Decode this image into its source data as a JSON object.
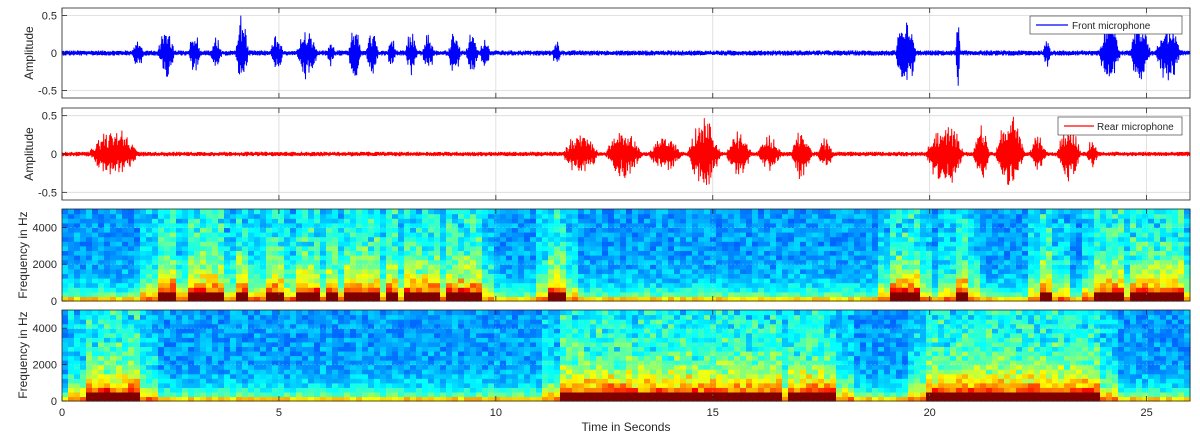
{
  "xlabel": "Time in Seconds",
  "x_ticks": [
    0,
    5,
    10,
    15,
    20,
    25
  ],
  "colors": {
    "front": "#0000ff",
    "rear": "#ff0000",
    "grid": "#d9d9d9"
  },
  "chart_data": [
    {
      "type": "line",
      "ylabel": "Amplitude",
      "xlim": [
        0,
        26
      ],
      "ylim": [
        -0.6,
        0.6
      ],
      "y_ticks": [
        -0.5,
        0,
        0.5
      ],
      "grid": true,
      "legend_position": "top-right",
      "series": [
        {
          "name": "Front microphone",
          "color": "#0000ff",
          "noise": 0.035,
          "bursts": [
            [
              1.6,
              1.9,
              0.22
            ],
            [
              2.2,
              2.6,
              0.4
            ],
            [
              2.9,
              3.2,
              0.34
            ],
            [
              3.4,
              3.7,
              0.25
            ],
            [
              4.0,
              4.3,
              0.55
            ],
            [
              4.8,
              5.1,
              0.3
            ],
            [
              5.4,
              5.9,
              0.44
            ],
            [
              6.1,
              6.3,
              0.22
            ],
            [
              6.6,
              6.9,
              0.48
            ],
            [
              7.0,
              7.3,
              0.38
            ],
            [
              7.5,
              7.7,
              0.25
            ],
            [
              7.9,
              8.2,
              0.35
            ],
            [
              8.3,
              8.6,
              0.3
            ],
            [
              8.9,
              9.2,
              0.35
            ],
            [
              9.3,
              9.6,
              0.32
            ],
            [
              9.6,
              9.9,
              0.2
            ],
            [
              11.3,
              11.5,
              0.22
            ],
            [
              19.2,
              19.7,
              0.58
            ],
            [
              20.6,
              20.7,
              0.6
            ],
            [
              22.6,
              22.8,
              0.28
            ],
            [
              23.9,
              24.4,
              0.55
            ],
            [
              24.6,
              25.1,
              0.5
            ],
            [
              25.2,
              25.8,
              0.45
            ]
          ]
        }
      ]
    },
    {
      "type": "line",
      "ylabel": "Amplitude",
      "xlim": [
        0,
        26
      ],
      "ylim": [
        -0.6,
        0.6
      ],
      "y_ticks": [
        -0.5,
        0,
        0.5
      ],
      "grid": true,
      "legend_position": "top-right",
      "series": [
        {
          "name": "Rear microphone",
          "color": "#ff0000",
          "noise": 0.03,
          "bursts": [
            [
              0.6,
              1.8,
              0.36
            ],
            [
              11.5,
              12.4,
              0.3
            ],
            [
              12.5,
              13.4,
              0.36
            ],
            [
              13.5,
              14.3,
              0.28
            ],
            [
              14.4,
              15.2,
              0.52
            ],
            [
              15.3,
              15.9,
              0.35
            ],
            [
              16.0,
              16.6,
              0.28
            ],
            [
              16.8,
              17.3,
              0.4
            ],
            [
              17.4,
              17.8,
              0.22
            ],
            [
              19.9,
              20.8,
              0.5
            ],
            [
              21.0,
              21.4,
              0.46
            ],
            [
              21.5,
              22.2,
              0.55
            ],
            [
              22.3,
              22.7,
              0.3
            ],
            [
              22.9,
              23.5,
              0.45
            ],
            [
              23.6,
              23.9,
              0.2
            ]
          ]
        }
      ]
    },
    {
      "type": "heatmap",
      "ylabel": "Frequency in Hz",
      "xlim": [
        0,
        26
      ],
      "ylim": [
        0,
        5000
      ],
      "y_ticks": [
        0,
        2000,
        4000
      ],
      "colormap": "jet",
      "speech_segments": [
        [
          2.2,
          2.6
        ],
        [
          2.9,
          3.2
        ],
        [
          3.4,
          3.7
        ],
        [
          4.0,
          4.3
        ],
        [
          4.8,
          5.1
        ],
        [
          5.4,
          5.9
        ],
        [
          6.1,
          6.3
        ],
        [
          6.6,
          6.9
        ],
        [
          7.0,
          7.3
        ],
        [
          7.5,
          7.7
        ],
        [
          7.9,
          8.2
        ],
        [
          8.3,
          8.6
        ],
        [
          8.9,
          9.2
        ],
        [
          9.3,
          9.6
        ],
        [
          11.3,
          11.5
        ],
        [
          19.2,
          19.7
        ],
        [
          20.6,
          20.8
        ],
        [
          22.6,
          22.8
        ],
        [
          23.9,
          24.4
        ],
        [
          24.6,
          25.1
        ],
        [
          25.2,
          25.8
        ]
      ]
    },
    {
      "type": "heatmap",
      "ylabel": "Frequency in Hz",
      "xlim": [
        0,
        26
      ],
      "ylim": [
        0,
        5000
      ],
      "y_ticks": [
        0,
        2000,
        4000
      ],
      "colormap": "jet",
      "speech_segments": [
        [
          0.6,
          1.8
        ],
        [
          11.5,
          12.4
        ],
        [
          12.5,
          13.4
        ],
        [
          13.5,
          14.3
        ],
        [
          14.4,
          15.2
        ],
        [
          15.3,
          15.9
        ],
        [
          16.0,
          16.6
        ],
        [
          16.8,
          17.3
        ],
        [
          17.4,
          17.8
        ],
        [
          19.9,
          20.8
        ],
        [
          21.0,
          21.4
        ],
        [
          21.5,
          22.2
        ],
        [
          22.3,
          22.7
        ],
        [
          22.9,
          23.5
        ],
        [
          23.6,
          23.9
        ]
      ]
    }
  ]
}
